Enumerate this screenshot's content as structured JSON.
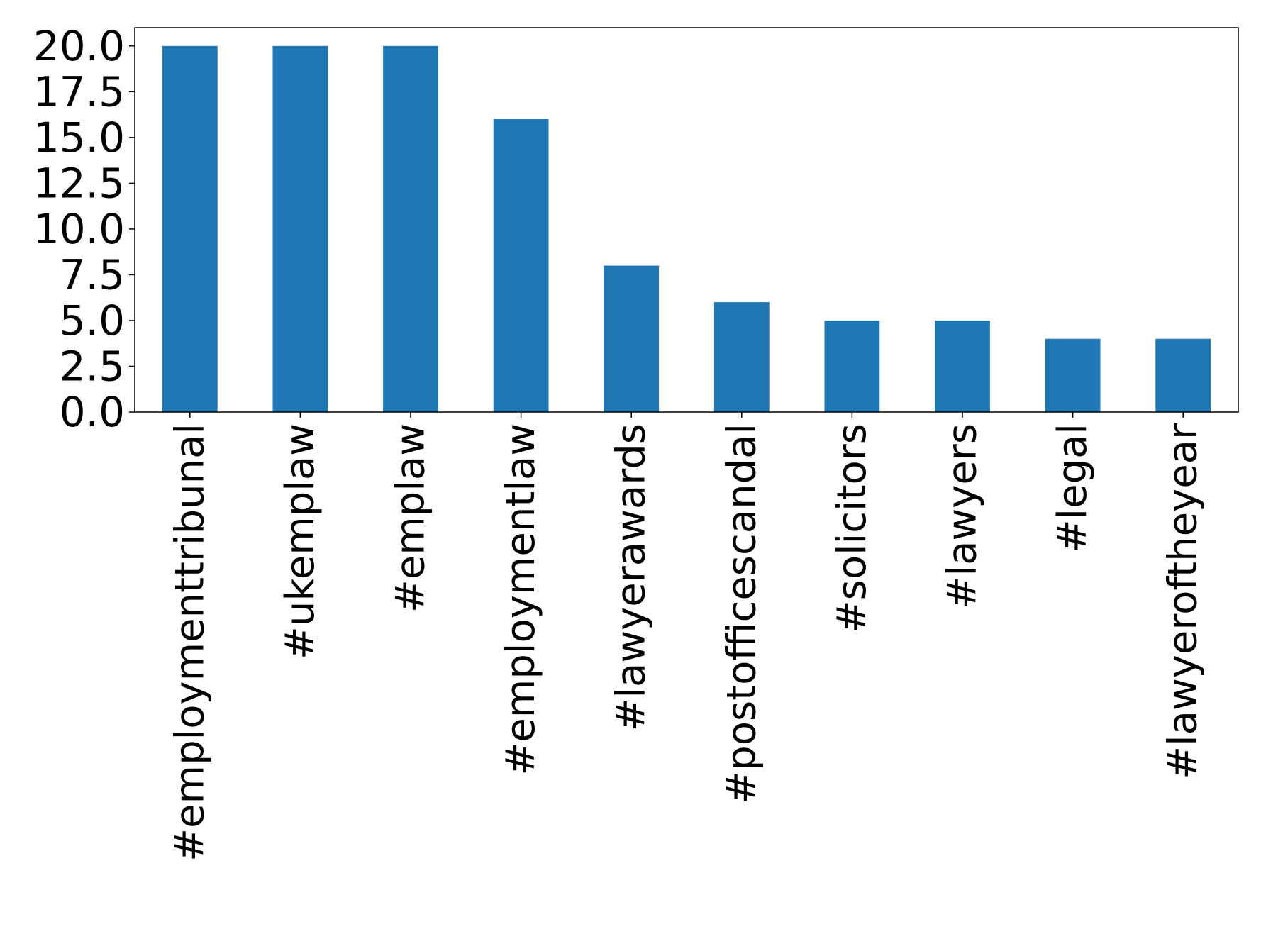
{
  "chart_data": {
    "type": "bar",
    "title": "",
    "xlabel": "",
    "ylabel": "",
    "categories": [
      "#employmenttribunal",
      "#ukemplaw",
      "#emplaw",
      "#employmentlaw",
      "#lawyerawards",
      "#postofficescandal",
      "#solicitors",
      "#lawyers",
      "#legal",
      "#lawyeroftheyear"
    ],
    "values": [
      20,
      20,
      20,
      16,
      8,
      6,
      5,
      5,
      4,
      4
    ],
    "ylim": [
      0,
      21
    ],
    "yticks": [
      "0.0",
      "2.5",
      "5.0",
      "7.5",
      "10.0",
      "12.5",
      "15.0",
      "17.5",
      "20.0"
    ],
    "grid": false,
    "legend": "none",
    "bar_color": "#1f77b4"
  }
}
